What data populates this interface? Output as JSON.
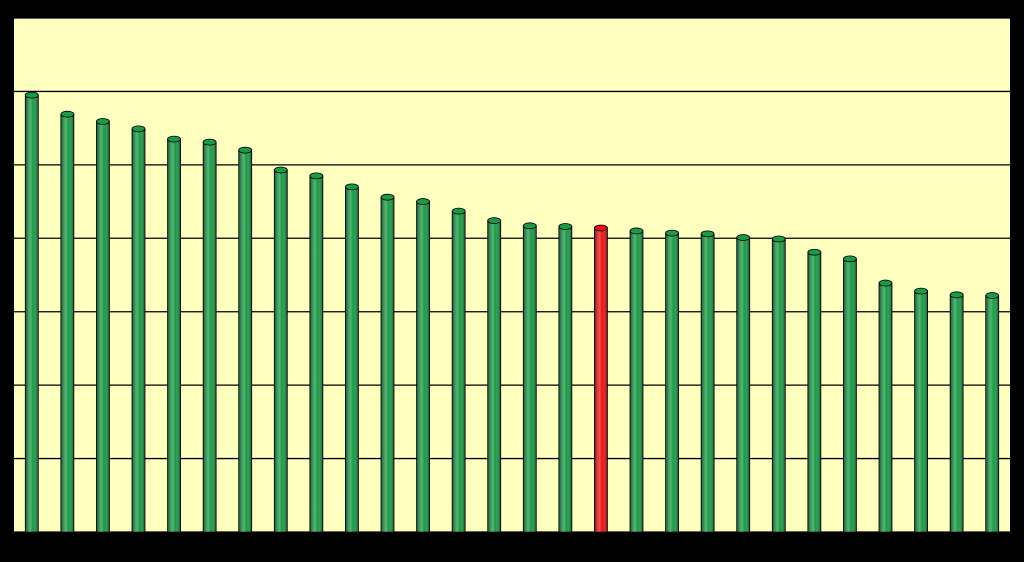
{
  "chart_data": {
    "type": "bar",
    "categories": [
      null,
      null,
      null,
      null,
      null,
      null,
      null,
      null,
      null,
      null,
      null,
      null,
      null,
      null,
      null,
      null,
      null,
      null,
      null,
      null,
      null,
      null,
      null,
      null,
      null,
      null,
      null,
      null
    ],
    "values": [
      5.95,
      5.69,
      5.59,
      5.49,
      5.35,
      5.31,
      5.2,
      4.93,
      4.85,
      4.7,
      4.56,
      4.5,
      4.37,
      4.24,
      4.17,
      4.16,
      4.14,
      4.1,
      4.07,
      4.06,
      4.01,
      3.99,
      3.81,
      3.72,
      3.39,
      3.28,
      3.23,
      3.22
    ],
    "colors": [
      "#1a9a45",
      "#1a9a45",
      "#1a9a45",
      "#1a9a45",
      "#1a9a45",
      "#1a9a45",
      "#1a9a45",
      "#1a9a45",
      "#1a9a45",
      "#1a9a45",
      "#1a9a45",
      "#1a9a45",
      "#1a9a45",
      "#1a9a45",
      "#1a9a45",
      "#1a9a45",
      "#ee1111",
      "#1a9a45",
      "#1a9a45",
      "#1a9a45",
      "#1a9a45",
      "#1a9a45",
      "#1a9a45",
      "#1a9a45",
      "#1a9a45",
      "#1a9a45",
      "#1a9a45",
      "#1a9a45"
    ],
    "ylim": [
      0,
      7
    ],
    "yticks": [
      0,
      1,
      2,
      3,
      4,
      5,
      6,
      7
    ],
    "grid": true
  }
}
